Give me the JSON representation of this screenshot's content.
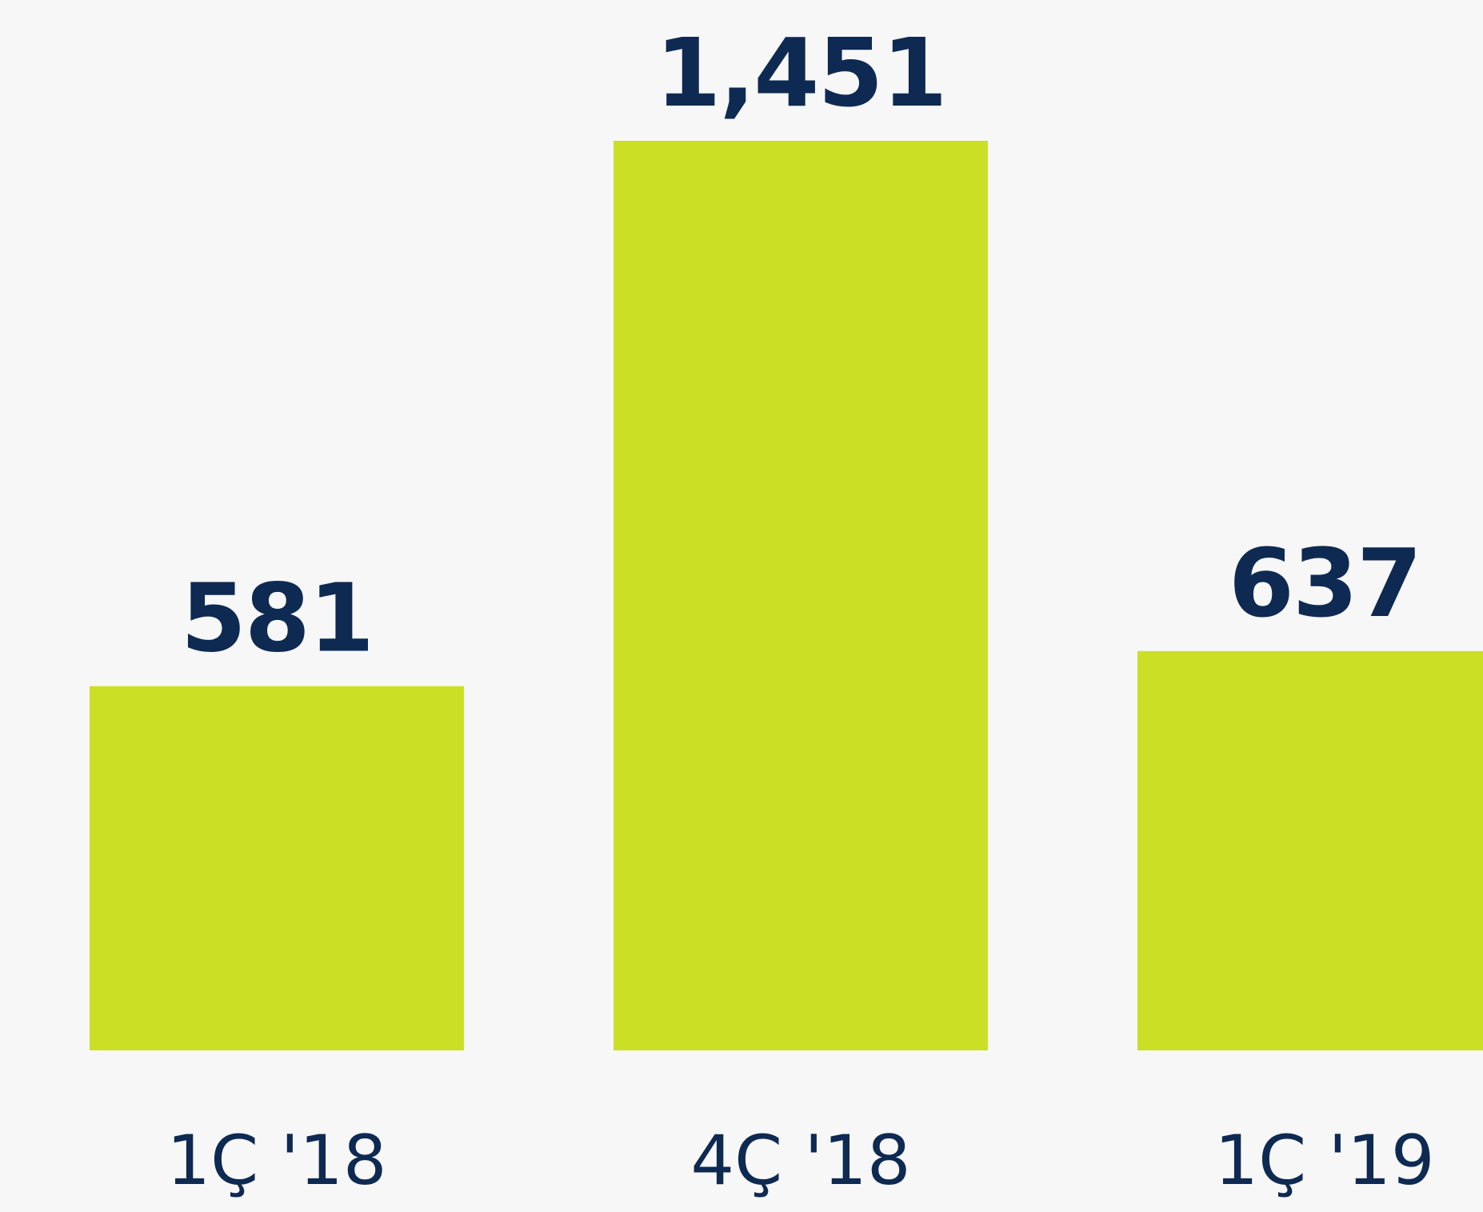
{
  "chart_data": {
    "type": "bar",
    "categories": [
      "1Ç '18",
      "4Ç '18",
      "1Ç '19"
    ],
    "values": [
      581,
      1451,
      637
    ],
    "value_labels": [
      "581",
      "1,451",
      "637"
    ],
    "title": "",
    "xlabel": "",
    "ylabel": "",
    "ylim": [
      0,
      1451
    ],
    "grid": false,
    "legend": "none",
    "colors": {
      "bar": "#cbdf25",
      "text": "#0e2a52",
      "background": "#f7f7f7"
    }
  }
}
